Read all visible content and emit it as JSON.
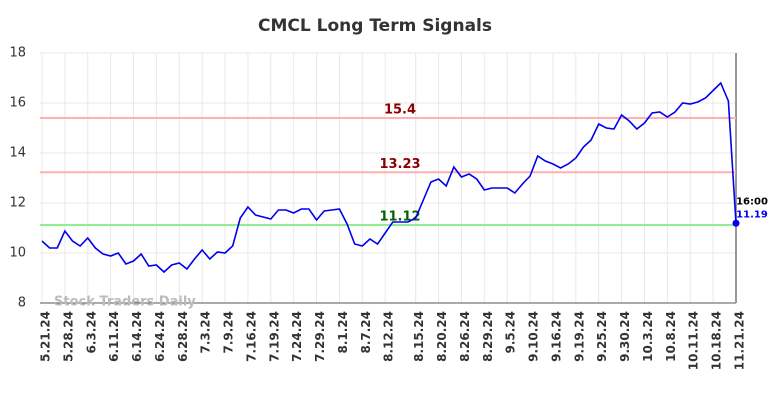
{
  "chart_data": {
    "type": "line",
    "title": "CMCL Long Term Signals",
    "categories": [
      "5.21.24",
      null,
      null,
      "5.28.24",
      null,
      null,
      "6.3.24",
      null,
      null,
      "6.11.24",
      null,
      null,
      "6.14.24",
      null,
      null,
      "6.24.24",
      null,
      null,
      "6.28.24",
      null,
      null,
      "7.3.24",
      null,
      null,
      "7.9.24",
      null,
      null,
      "7.16.24",
      null,
      null,
      "7.19.24",
      null,
      null,
      "7.24.24",
      null,
      null,
      "7.29.24",
      null,
      null,
      "8.1.24",
      null,
      null,
      "8.7.24",
      null,
      null,
      "8.12.24",
      null,
      null,
      null,
      "8.15.24",
      null,
      null,
      "8.20.24",
      null,
      null,
      "8.26.24",
      null,
      null,
      "8.29.24",
      null,
      null,
      "9.5.24",
      null,
      null,
      "9.10.24",
      null,
      null,
      "9.16.24",
      null,
      null,
      "9.19.24",
      null,
      null,
      "9.25.24",
      null,
      null,
      "9.30.24",
      null,
      null,
      "10.3.24",
      null,
      null,
      "10.8.24",
      null,
      null,
      "10.11.24",
      null,
      null,
      "10.18.24",
      null,
      null,
      "11.21.24"
    ],
    "series": [
      {
        "name": "CMCL",
        "color": "#0000ee",
        "values": [
          10.48,
          10.2,
          10.2,
          10.88,
          10.48,
          10.28,
          10.6,
          10.2,
          9.96,
          9.88,
          10.0,
          9.56,
          9.68,
          9.96,
          9.48,
          9.52,
          9.24,
          9.52,
          9.6,
          9.36,
          9.76,
          10.12,
          9.76,
          10.04,
          10.0,
          10.28,
          11.4,
          11.84,
          11.52,
          11.44,
          11.36,
          11.72,
          11.72,
          11.6,
          11.76,
          11.76,
          11.32,
          11.68,
          11.72,
          11.76,
          11.16,
          10.36,
          10.28,
          10.56,
          10.36,
          10.8,
          11.24,
          11.24,
          11.24,
          11.4,
          12.12,
          12.84,
          12.96,
          12.68,
          13.44,
          13.04,
          13.16,
          12.96,
          12.52,
          12.6,
          12.6,
          12.6,
          12.4,
          12.76,
          13.08,
          13.88,
          13.68,
          13.56,
          13.4,
          13.56,
          13.8,
          14.24,
          14.52,
          15.16,
          15.0,
          14.96,
          15.52,
          15.28,
          14.96,
          15.2,
          15.6,
          15.64,
          15.44,
          15.64,
          16.0,
          15.96,
          16.04,
          16.2,
          16.5,
          16.8,
          16.08,
          11.19
        ]
      }
    ],
    "ylim": [
      8,
      18
    ],
    "yticks": [
      8,
      10,
      12,
      14,
      16,
      18
    ],
    "grid": true,
    "hlines": [
      {
        "value": 15.4,
        "color": "#ffb0b0",
        "label_color": "#8b0000"
      },
      {
        "value": 13.23,
        "color": "#ffb0b0",
        "label_color": "#8b0000"
      },
      {
        "value": 11.12,
        "color": "#90ee90",
        "label_color": "#006400"
      }
    ],
    "last_label": "16:00",
    "watermark": "Stock Traders Daily"
  }
}
